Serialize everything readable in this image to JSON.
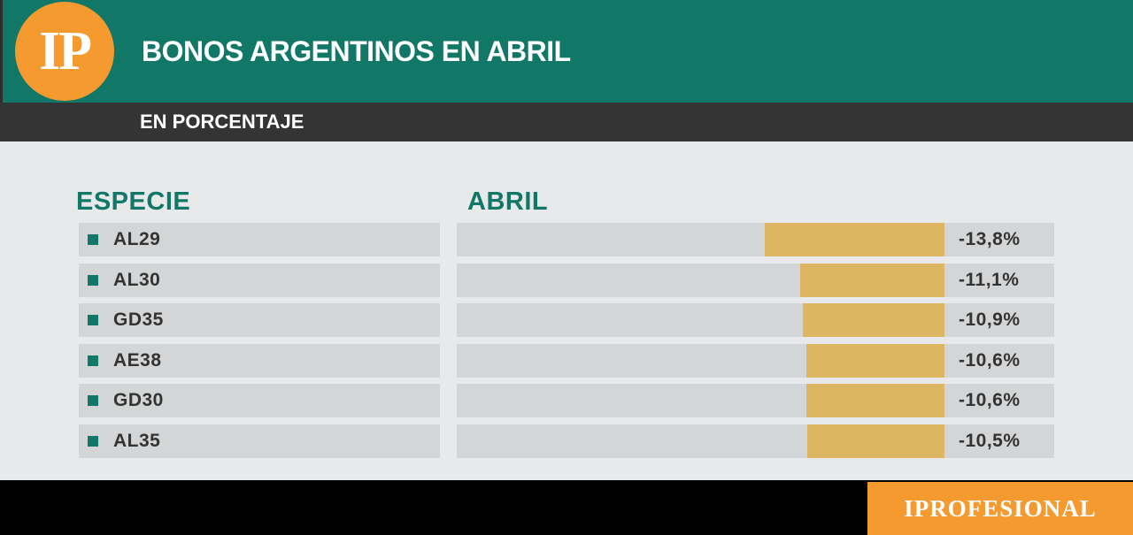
{
  "header": {
    "logo": "IP",
    "title": "BONOS ARGENTINOS EN ABRIL",
    "subtitle": "EN PORCENTAJE"
  },
  "footer": {
    "brand": "IPROFESIONAL"
  },
  "colors": {
    "header": "#117867",
    "subheader": "#343434",
    "accent": "#f59a2e",
    "bar": "#ddb664",
    "track": "#d3d5d6"
  },
  "chart_data": {
    "type": "bar",
    "orientation": "horizontal",
    "xlabel": "ESPECIE",
    "ylabel": "ABRIL",
    "categories": [
      "AL29",
      "AL30",
      "GD35",
      "AE38",
      "GD30",
      "AL35"
    ],
    "values": [
      -13.8,
      -11.1,
      -10.9,
      -10.6,
      -10.6,
      -10.5
    ],
    "labels": [
      "-13,8%",
      "-11,1%",
      "-10,9%",
      "-10,6%",
      "-10,6%",
      "-10,5%"
    ],
    "unit": "%"
  }
}
